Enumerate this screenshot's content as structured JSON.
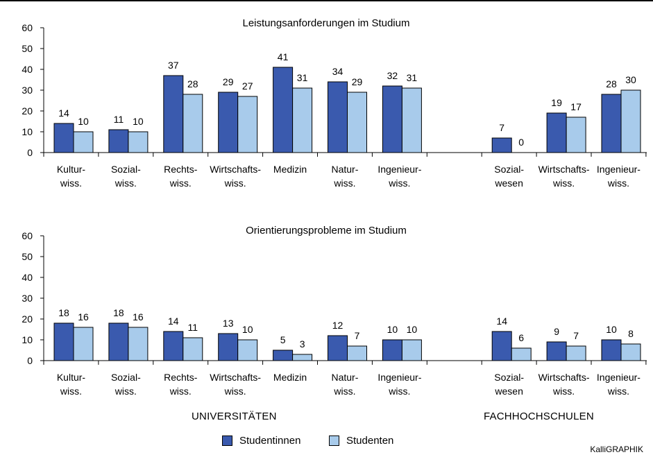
{
  "chart_data": [
    {
      "type": "bar",
      "title": "Leistungsanforderungen im Studium",
      "ylim": [
        0,
        60
      ],
      "yticks": [
        0,
        10,
        20,
        30,
        40,
        50,
        60
      ],
      "categories": [
        [
          "Kultur-",
          "wiss."
        ],
        [
          "Sozial-",
          "wiss."
        ],
        [
          "Rechts-",
          "wiss."
        ],
        [
          "Wirtschafts-",
          "wiss."
        ],
        [
          "Medizin"
        ],
        [
          "Natur-",
          "wiss."
        ],
        [
          "Ingenieur-",
          "wiss."
        ],
        [],
        [
          "Sozial-",
          "wesen"
        ],
        [
          "Wirtschafts-",
          "wiss."
        ],
        [
          "Ingenieur-",
          "wiss."
        ]
      ],
      "series": [
        {
          "name": "Studentinnen",
          "values": [
            14,
            11,
            37,
            29,
            41,
            34,
            32,
            null,
            7,
            19,
            28
          ]
        },
        {
          "name": "Studenten",
          "values": [
            10,
            10,
            28,
            27,
            31,
            29,
            31,
            null,
            0,
            17,
            30
          ]
        }
      ]
    },
    {
      "type": "bar",
      "title": "Orientierungsprobleme im Studium",
      "ylim": [
        0,
        60
      ],
      "yticks": [
        0,
        10,
        20,
        30,
        40,
        50,
        60
      ],
      "categories": [
        [
          "Kultur-",
          "wiss."
        ],
        [
          "Sozial-",
          "wiss."
        ],
        [
          "Rechts-",
          "wiss."
        ],
        [
          "Wirtschafts-",
          "wiss."
        ],
        [
          "Medizin"
        ],
        [
          "Natur-",
          "wiss."
        ],
        [
          "Ingenieur-",
          "wiss."
        ],
        [],
        [
          "Sozial-",
          "wesen"
        ],
        [
          "Wirtschafts-",
          "wiss."
        ],
        [
          "Ingenieur-",
          "wiss."
        ]
      ],
      "series": [
        {
          "name": "Studentinnen",
          "values": [
            18,
            18,
            14,
            13,
            5,
            12,
            10,
            null,
            14,
            9,
            10
          ]
        },
        {
          "name": "Studenten",
          "values": [
            16,
            16,
            11,
            10,
            3,
            7,
            10,
            null,
            6,
            7,
            8
          ]
        }
      ]
    }
  ],
  "groups": {
    "universities": "UNIVERSITÄTEN",
    "fachhochschulen": "FACHHOCHSCHULEN"
  },
  "legend": {
    "studentinnen": "Studentinnen",
    "studenten": "Studenten"
  },
  "colors": {
    "studentinnen": "#3a5aae",
    "studenten": "#a8cbeb"
  },
  "credit": "KalliGRAPHIK"
}
